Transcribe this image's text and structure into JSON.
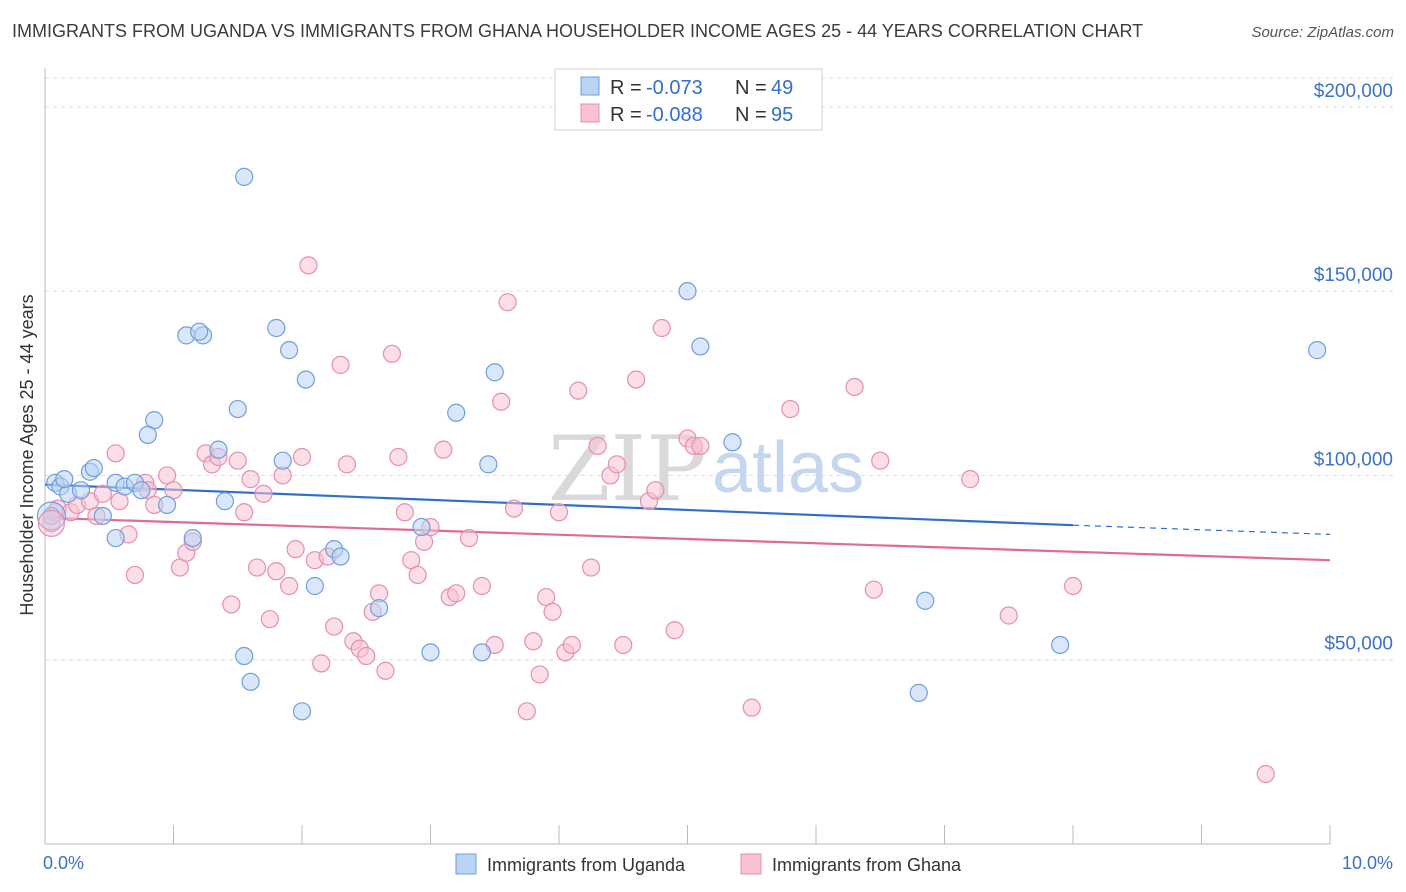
{
  "header": {
    "title": "IMMIGRANTS FROM UGANDA VS IMMIGRANTS FROM GHANA HOUSEHOLDER INCOME AGES 25 - 44 YEARS CORRELATION CHART",
    "source": "Source: ZipAtlas.com"
  },
  "legend": {
    "rows": [
      {
        "r_label": "R = ",
        "r_value": "-0.073",
        "n_label": "N = ",
        "n_value": "49"
      },
      {
        "r_label": "R = ",
        "r_value": "-0.088",
        "n_label": "N = ",
        "n_value": "95"
      }
    ]
  },
  "watermark": {
    "zip": "ZIP",
    "atlas": "atlas"
  },
  "colors": {
    "uganda_fill": "#b9d3f3",
    "uganda_stroke": "#6f9fdc",
    "uganda_line": "#2f6fca",
    "ghana_fill": "#f7c3d3",
    "ghana_stroke": "#e68fac",
    "ghana_line": "#e26a96",
    "grid": "#dddddd",
    "tick_text": "#3a72c8"
  },
  "chart_data": {
    "type": "scatter",
    "title": "IMMIGRANTS FROM UGANDA VS IMMIGRANTS FROM GHANA HOUSEHOLDER INCOME AGES 25 - 44 YEARS CORRELATION CHART",
    "xlabel": "",
    "ylabel": "Householder Income Ages 25 - 44 years",
    "xlim": [
      0,
      10
    ],
    "ylim": [
      0,
      210000
    ],
    "x_tick_labels": [
      "0.0%",
      "10.0%"
    ],
    "y_ticks": [
      50000,
      100000,
      150000,
      200000
    ],
    "y_tick_labels": [
      "$50,000",
      "$100,000",
      "$150,000",
      "$200,000"
    ],
    "grid": true,
    "legend_position": "top-center",
    "series": [
      {
        "name": "Immigrants from Uganda",
        "r": -0.073,
        "n": 49,
        "trend": {
          "x0": 0,
          "y0": 97500,
          "x1": 8,
          "y1": 86500,
          "dash_to": 10,
          "dash_y": 84000
        },
        "points": [
          [
            0.05,
            89000
          ],
          [
            0.08,
            98000
          ],
          [
            0.12,
            97000
          ],
          [
            0.18,
            95000
          ],
          [
            0.28,
            96000
          ],
          [
            0.15,
            99000
          ],
          [
            0.35,
            101000
          ],
          [
            0.38,
            102000
          ],
          [
            0.55,
            98000
          ],
          [
            0.45,
            89000
          ],
          [
            0.62,
            97000
          ],
          [
            0.7,
            98000
          ],
          [
            0.75,
            96000
          ],
          [
            0.85,
            115000
          ],
          [
            0.55,
            83000
          ],
          [
            0.8,
            111000
          ],
          [
            0.95,
            92000
          ],
          [
            1.15,
            83000
          ],
          [
            1.1,
            138000
          ],
          [
            1.23,
            138000
          ],
          [
            1.2,
            139000
          ],
          [
            1.35,
            107000
          ],
          [
            1.4,
            93000
          ],
          [
            1.5,
            118000
          ],
          [
            1.55,
            51000
          ],
          [
            1.6,
            44000
          ],
          [
            1.85,
            104000
          ],
          [
            1.8,
            140000
          ],
          [
            1.9,
            134000
          ],
          [
            2.0,
            36000
          ],
          [
            2.1,
            70000
          ],
          [
            2.25,
            80000
          ],
          [
            2.3,
            78000
          ],
          [
            2.03,
            126000
          ],
          [
            2.6,
            64000
          ],
          [
            2.93,
            86000
          ],
          [
            3.0,
            52000
          ],
          [
            3.2,
            117000
          ],
          [
            3.4,
            52000
          ],
          [
            3.45,
            103000
          ],
          [
            1.55,
            181000
          ],
          [
            3.5,
            128000
          ],
          [
            5.0,
            150000
          ],
          [
            5.1,
            135000
          ],
          [
            5.35,
            109000
          ],
          [
            6.85,
            66000
          ],
          [
            6.8,
            41000
          ],
          [
            7.9,
            54000
          ],
          [
            9.9,
            134000
          ]
        ]
      },
      {
        "name": "Immigrants from Ghana",
        "r": -0.088,
        "n": 95,
        "trend": {
          "x0": 0,
          "y0": 88500,
          "x1": 10,
          "y1": 77000
        },
        "points": [
          [
            0.05,
            87000
          ],
          [
            0.08,
            90000
          ],
          [
            0.1,
            91000
          ],
          [
            0.2,
            90000
          ],
          [
            0.25,
            92000
          ],
          [
            0.35,
            93000
          ],
          [
            0.4,
            89000
          ],
          [
            0.45,
            95000
          ],
          [
            0.55,
            106000
          ],
          [
            0.58,
            93000
          ],
          [
            0.65,
            84000
          ],
          [
            0.7,
            73000
          ],
          [
            0.78,
            98000
          ],
          [
            0.8,
            96000
          ],
          [
            0.85,
            92000
          ],
          [
            0.95,
            100000
          ],
          [
            1.0,
            96000
          ],
          [
            1.05,
            75000
          ],
          [
            1.1,
            79000
          ],
          [
            1.15,
            82000
          ],
          [
            1.25,
            106000
          ],
          [
            1.3,
            103000
          ],
          [
            1.35,
            105000
          ],
          [
            1.45,
            65000
          ],
          [
            1.5,
            104000
          ],
          [
            1.55,
            90000
          ],
          [
            1.6,
            99000
          ],
          [
            1.65,
            75000
          ],
          [
            1.7,
            95000
          ],
          [
            1.75,
            61000
          ],
          [
            1.8,
            74000
          ],
          [
            1.85,
            100000
          ],
          [
            1.9,
            70000
          ],
          [
            1.95,
            80000
          ],
          [
            2.0,
            105000
          ],
          [
            2.05,
            157000
          ],
          [
            2.1,
            77000
          ],
          [
            2.15,
            49000
          ],
          [
            2.2,
            78000
          ],
          [
            2.25,
            59000
          ],
          [
            2.3,
            130000
          ],
          [
            2.35,
            103000
          ],
          [
            2.4,
            55000
          ],
          [
            2.45,
            53000
          ],
          [
            2.5,
            51000
          ],
          [
            2.55,
            63000
          ],
          [
            2.6,
            68000
          ],
          [
            2.65,
            47000
          ],
          [
            2.7,
            133000
          ],
          [
            2.75,
            105000
          ],
          [
            2.8,
            90000
          ],
          [
            2.85,
            77000
          ],
          [
            2.9,
            73000
          ],
          [
            2.95,
            82000
          ],
          [
            3.0,
            86000
          ],
          [
            3.1,
            107000
          ],
          [
            3.15,
            67000
          ],
          [
            3.2,
            68000
          ],
          [
            3.3,
            83000
          ],
          [
            3.4,
            70000
          ],
          [
            3.5,
            54000
          ],
          [
            3.55,
            120000
          ],
          [
            3.6,
            147000
          ],
          [
            3.65,
            91000
          ],
          [
            3.75,
            36000
          ],
          [
            3.8,
            55000
          ],
          [
            3.85,
            46000
          ],
          [
            3.9,
            67000
          ],
          [
            3.95,
            63000
          ],
          [
            4.0,
            90000
          ],
          [
            4.05,
            52000
          ],
          [
            4.1,
            54000
          ],
          [
            4.15,
            123000
          ],
          [
            4.25,
            75000
          ],
          [
            4.3,
            108000
          ],
          [
            4.4,
            100000
          ],
          [
            4.45,
            103000
          ],
          [
            4.5,
            54000
          ],
          [
            4.6,
            126000
          ],
          [
            4.7,
            93000
          ],
          [
            4.75,
            96000
          ],
          [
            4.8,
            140000
          ],
          [
            4.9,
            58000
          ],
          [
            5.0,
            110000
          ],
          [
            5.05,
            108000
          ],
          [
            5.1,
            108000
          ],
          [
            5.5,
            37000
          ],
          [
            5.8,
            118000
          ],
          [
            6.3,
            124000
          ],
          [
            6.45,
            69000
          ],
          [
            6.5,
            104000
          ],
          [
            7.2,
            99000
          ],
          [
            7.5,
            62000
          ],
          [
            8.0,
            70000
          ],
          [
            9.5,
            19000
          ]
        ]
      }
    ]
  },
  "bottom_legend": {
    "items": [
      "Immigrants from Uganda",
      "Immigrants from Ghana"
    ]
  }
}
